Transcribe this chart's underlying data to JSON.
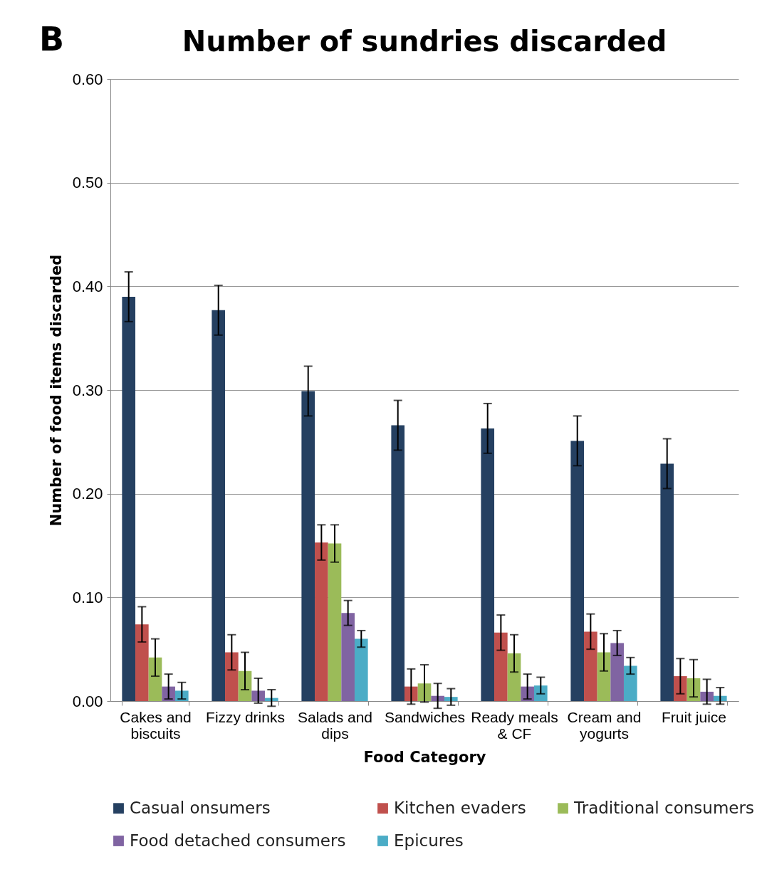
{
  "chart_data": {
    "type": "bar",
    "title": "Number of sundries discarded",
    "xlabel": "Food Category",
    "ylabel": "Number of food items discarded",
    "annotations": [
      "B"
    ],
    "categories": [
      "Cakes and biscuits",
      "Fizzy drinks",
      "Salads and dips",
      "Sandwiches",
      "Ready meals & CF",
      "Cream and yogurts",
      "Fruit juice"
    ],
    "series": [
      {
        "name": "Casual onsumers",
        "color": "#254061",
        "values": [
          0.39,
          0.377,
          0.299,
          0.266,
          0.263,
          0.251,
          0.229
        ],
        "errors": [
          0.024,
          0.024,
          0.024,
          0.024,
          0.024,
          0.024,
          0.024
        ]
      },
      {
        "name": "Kitchen evaders",
        "color": "#c0504d",
        "values": [
          0.074,
          0.047,
          0.153,
          0.014,
          0.066,
          0.067,
          0.024
        ],
        "errors": [
          0.017,
          0.017,
          0.017,
          0.017,
          0.017,
          0.017,
          0.017
        ]
      },
      {
        "name": "Traditional consumers",
        "color": "#9bbb59",
        "values": [
          0.042,
          0.029,
          0.152,
          0.017,
          0.046,
          0.047,
          0.022
        ],
        "errors": [
          0.018,
          0.018,
          0.018,
          0.018,
          0.018,
          0.018,
          0.018
        ]
      },
      {
        "name": "Food detached consumers",
        "color": "#8064a2",
        "values": [
          0.014,
          0.01,
          0.085,
          0.005,
          0.014,
          0.056,
          0.009
        ],
        "errors": [
          0.012,
          0.012,
          0.012,
          0.012,
          0.012,
          0.012,
          0.012
        ]
      },
      {
        "name": "Epicures",
        "color": "#4bacc6",
        "values": [
          0.01,
          0.003,
          0.06,
          0.004,
          0.015,
          0.034,
          0.005
        ],
        "errors": [
          0.008,
          0.008,
          0.008,
          0.008,
          0.008,
          0.008,
          0.008
        ]
      }
    ],
    "ylim": [
      0,
      0.6
    ],
    "yticks": [
      {
        "value": 0,
        "label": "0.00"
      },
      {
        "value": 0.1,
        "label": "0.10"
      },
      {
        "value": 0.2,
        "label": "0.20"
      },
      {
        "value": 0.3,
        "label": "0.30"
      },
      {
        "value": 0.4,
        "label": "0.40"
      },
      {
        "value": 0.5,
        "label": "0.50"
      },
      {
        "value": 0.6,
        "label": "0.60"
      }
    ],
    "grid": "y",
    "legend": "bottom"
  }
}
